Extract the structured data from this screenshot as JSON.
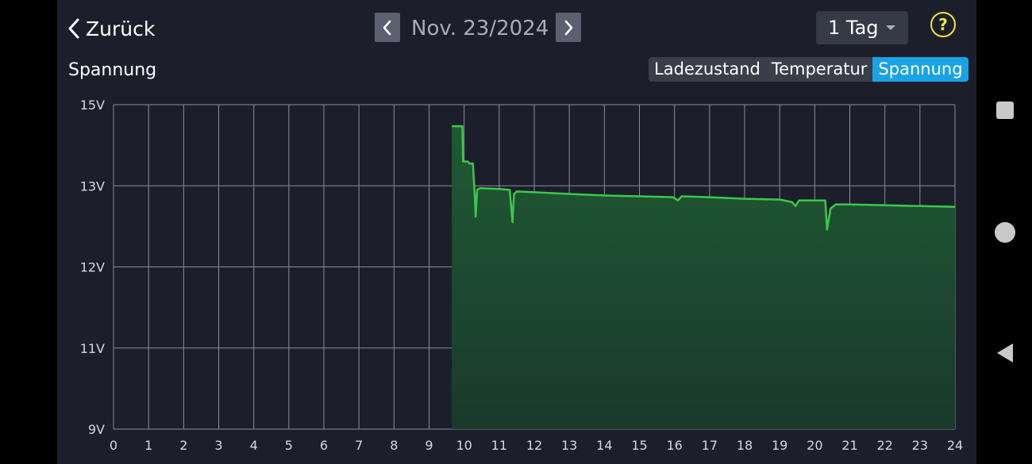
{
  "header": {
    "back_label": "Zurück",
    "date": "Nov. 23/2024",
    "range": "1 Tag",
    "help_symbol": "?"
  },
  "section": {
    "title": "Spannung",
    "tabs": [
      {
        "label": "Ladezustand",
        "active": false
      },
      {
        "label": "Temperatur",
        "active": false
      },
      {
        "label": "Spannung",
        "active": true
      }
    ]
  },
  "colors": {
    "background": "#1c1f2b",
    "line": "#3cc84a",
    "fill": "#1f5a33",
    "grid": "#8a8d96",
    "accent": "#1aa2e6",
    "help": "#f0e53a"
  },
  "icons": {
    "back": "chevron-left-icon",
    "prev": "chevron-left-icon",
    "next": "chevron-right-icon",
    "dropdown": "caret-down-icon",
    "help": "question-circle-icon",
    "nav_square": "recent-apps-icon",
    "nav_circle": "home-icon",
    "nav_triangle": "back-nav-icon"
  },
  "chart_data": {
    "type": "area",
    "title": "",
    "xlabel": "",
    "ylabel": "",
    "x_ticks": [
      "0",
      "1",
      "2",
      "3",
      "4",
      "5",
      "6",
      "7",
      "8",
      "9",
      "10",
      "11",
      "12",
      "13",
      "14",
      "15",
      "16",
      "17",
      "18",
      "19",
      "20",
      "21",
      "22",
      "23",
      "24"
    ],
    "xlim": [
      0,
      24
    ],
    "y_ticks": [
      {
        "label": "15V",
        "value": 15
      },
      {
        "label": "13V",
        "value": 13
      },
      {
        "label": "12V",
        "value": 12
      },
      {
        "label": "11V",
        "value": 11
      },
      {
        "label": "9V",
        "value": 9
      }
    ],
    "grid": true,
    "series": [
      {
        "points": [
          [
            9.65,
            14.47
          ],
          [
            9.95,
            14.47
          ],
          [
            9.97,
            13.6
          ],
          [
            10.1,
            13.6
          ],
          [
            10.15,
            13.55
          ],
          [
            10.25,
            13.55
          ],
          [
            10.3,
            12.9
          ],
          [
            10.33,
            12.62
          ],
          [
            10.37,
            12.95
          ],
          [
            10.45,
            12.97
          ],
          [
            11.0,
            12.96
          ],
          [
            11.3,
            12.95
          ],
          [
            11.38,
            12.55
          ],
          [
            11.42,
            12.9
          ],
          [
            11.5,
            12.93
          ],
          [
            12.0,
            12.92
          ],
          [
            13.0,
            12.9
          ],
          [
            14.0,
            12.88
          ],
          [
            15.0,
            12.87
          ],
          [
            15.95,
            12.86
          ],
          [
            16.1,
            12.82
          ],
          [
            16.2,
            12.87
          ],
          [
            17.0,
            12.86
          ],
          [
            18.0,
            12.84
          ],
          [
            19.0,
            12.83
          ],
          [
            19.35,
            12.8
          ],
          [
            19.45,
            12.75
          ],
          [
            19.55,
            12.82
          ],
          [
            20.3,
            12.82
          ],
          [
            20.35,
            12.46
          ],
          [
            20.45,
            12.72
          ],
          [
            20.6,
            12.77
          ],
          [
            21.0,
            12.77
          ],
          [
            22.0,
            12.76
          ],
          [
            23.0,
            12.75
          ],
          [
            24.0,
            12.74
          ]
        ]
      }
    ]
  }
}
